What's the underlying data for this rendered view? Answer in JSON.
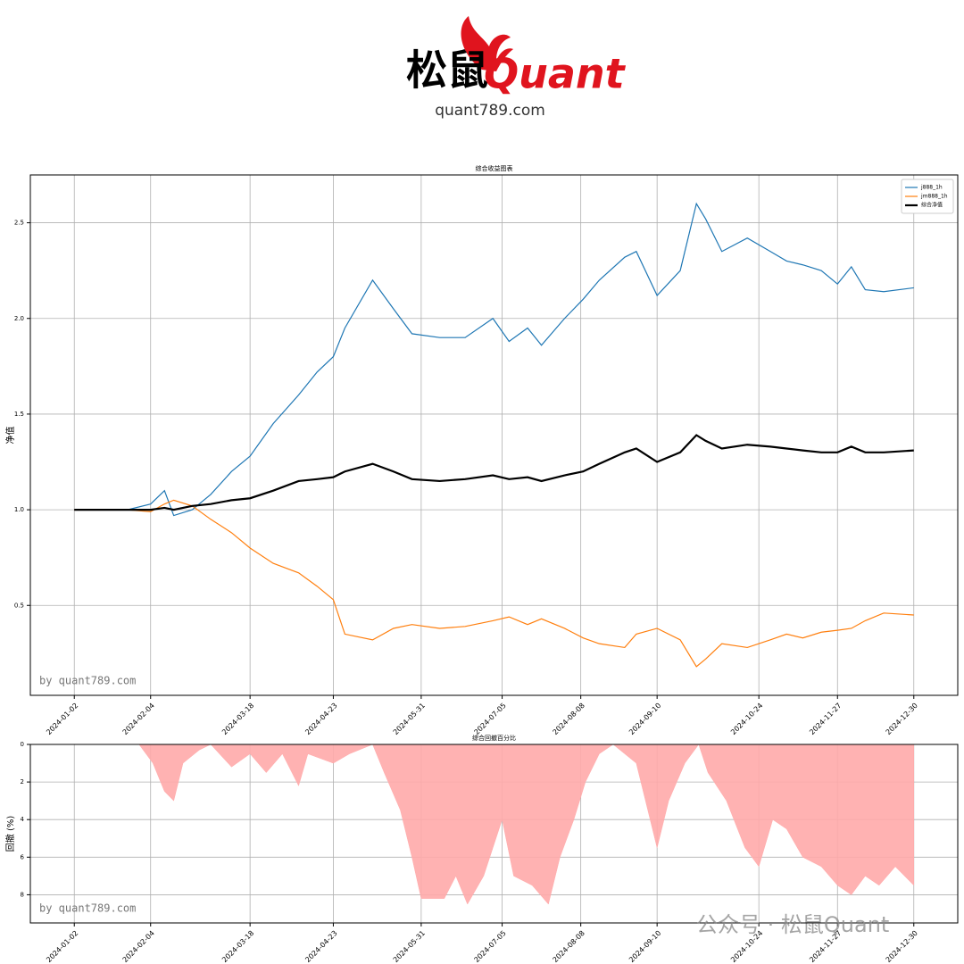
{
  "header": {
    "logo_cn": "松鼠",
    "logo_en": "Quant",
    "url": "quant789.com"
  },
  "watermark": "公众号 · 松鼠Quant",
  "chart_data": [
    {
      "type": "line",
      "title": "综合收益图表",
      "y_label": "净值",
      "annotation": "by quant789.com",
      "legend": "upper right",
      "grid": true,
      "xlim": [
        "2023-12-14",
        "2025-01-18"
      ],
      "ylim": [
        0.03,
        2.75
      ],
      "xticks": [
        "2024-01-02",
        "2024-02-04",
        "2024-03-18",
        "2024-04-23",
        "2024-05-31",
        "2024-07-05",
        "2024-08-08",
        "2024-09-10",
        "2024-10-24",
        "2024-11-27",
        "2024-12-30"
      ],
      "yticks": [
        0.5,
        {
          "value": 1,
          "label": "1.0"
        },
        1.5,
        {
          "value": 2,
          "label": "2.0"
        },
        2.5
      ],
      "x": [
        "2024-01-02",
        "2024-01-25",
        "2024-02-04",
        "2024-02-10",
        "2024-02-14",
        "2024-02-22",
        "2024-03-01",
        "2024-03-10",
        "2024-03-18",
        "2024-03-28",
        "2024-04-08",
        "2024-04-16",
        "2024-04-23",
        "2024-04-28",
        "2024-05-10",
        "2024-05-19",
        "2024-05-27",
        "2024-06-08",
        "2024-06-19",
        "2024-07-01",
        "2024-07-08",
        "2024-07-16",
        "2024-07-22",
        "2024-08-01",
        "2024-08-09",
        "2024-08-16",
        "2024-08-27",
        "2024-09-01",
        "2024-09-10",
        "2024-09-20",
        "2024-09-27",
        "2024-10-01",
        "2024-10-08",
        "2024-10-19",
        "2024-10-29",
        "2024-11-05",
        "2024-11-12",
        "2024-11-20",
        "2024-11-27",
        "2024-12-03",
        "2024-12-09",
        "2024-12-17",
        "2024-12-30"
      ],
      "series": [
        {
          "name": "j888_1h",
          "color": "#1f77b4",
          "width": 1.2,
          "values": [
            1.0,
            1.0,
            1.03,
            1.1,
            0.97,
            1.0,
            1.08,
            1.2,
            1.28,
            1.45,
            1.6,
            1.72,
            1.8,
            1.95,
            2.2,
            2.05,
            1.92,
            1.9,
            1.9,
            2.0,
            1.88,
            1.95,
            1.86,
            2.0,
            2.1,
            2.2,
            2.32,
            2.35,
            2.12,
            2.25,
            2.6,
            2.52,
            2.35,
            2.42,
            2.35,
            2.3,
            2.28,
            2.25,
            2.18,
            2.27,
            2.15,
            2.14,
            2.16
          ]
        },
        {
          "name": "jm888_1h",
          "color": "#ff7f0e",
          "width": 1.2,
          "values": [
            1.0,
            1.0,
            0.99,
            1.03,
            1.05,
            1.02,
            0.95,
            0.88,
            0.8,
            0.72,
            0.67,
            0.6,
            0.53,
            0.35,
            0.32,
            0.38,
            0.4,
            0.38,
            0.39,
            0.42,
            0.44,
            0.4,
            0.43,
            0.38,
            0.33,
            0.3,
            0.28,
            0.35,
            0.38,
            0.32,
            0.18,
            0.22,
            0.3,
            0.28,
            0.32,
            0.35,
            0.33,
            0.36,
            0.37,
            0.38,
            0.42,
            0.46,
            0.45
          ]
        },
        {
          "name": "综合净值",
          "color": "#000000",
          "width": 2.2,
          "values": [
            1.0,
            1.0,
            1.0,
            1.01,
            1.0,
            1.02,
            1.03,
            1.05,
            1.06,
            1.1,
            1.15,
            1.16,
            1.17,
            1.2,
            1.24,
            1.2,
            1.16,
            1.15,
            1.16,
            1.18,
            1.16,
            1.17,
            1.15,
            1.18,
            1.2,
            1.24,
            1.3,
            1.32,
            1.25,
            1.3,
            1.39,
            1.36,
            1.32,
            1.34,
            1.33,
            1.32,
            1.31,
            1.3,
            1.3,
            1.33,
            1.3,
            1.3,
            1.31
          ]
        }
      ]
    },
    {
      "type": "area",
      "title": "综合回撤百分比",
      "y_label": "回撤 (%)",
      "annotation": "by quant789.com",
      "grid": true,
      "invert_y": true,
      "xlim": [
        "2023-12-14",
        "2025-01-18"
      ],
      "ylim": [
        0,
        9.5
      ],
      "xticks": [
        "2024-01-02",
        "2024-02-04",
        "2024-03-18",
        "2024-04-23",
        "2024-05-31",
        "2024-07-05",
        "2024-08-08",
        "2024-09-10",
        "2024-10-24",
        "2024-11-27",
        "2024-12-30"
      ],
      "yticks": [
        0,
        2,
        4,
        6,
        8
      ],
      "x": [
        "2024-01-02",
        "2024-01-30",
        "2024-02-05",
        "2024-02-10",
        "2024-02-14",
        "2024-02-18",
        "2024-02-25",
        "2024-03-01",
        "2024-03-10",
        "2024-03-18",
        "2024-03-25",
        "2024-04-01",
        "2024-04-08",
        "2024-04-12",
        "2024-04-23",
        "2024-04-30",
        "2024-05-10",
        "2024-05-15",
        "2024-05-22",
        "2024-05-27",
        "2024-05-31",
        "2024-06-10",
        "2024-06-15",
        "2024-06-20",
        "2024-06-27",
        "2024-07-01",
        "2024-07-05",
        "2024-07-10",
        "2024-07-18",
        "2024-07-25",
        "2024-07-30",
        "2024-08-05",
        "2024-08-10",
        "2024-08-16",
        "2024-08-22",
        "2024-08-27",
        "2024-09-01",
        "2024-09-05",
        "2024-09-10",
        "2024-09-15",
        "2024-09-22",
        "2024-09-28",
        "2024-10-02",
        "2024-10-10",
        "2024-10-18",
        "2024-10-24",
        "2024-10-30",
        "2024-11-05",
        "2024-11-12",
        "2024-11-20",
        "2024-11-27",
        "2024-12-03",
        "2024-12-09",
        "2024-12-15",
        "2024-12-22",
        "2024-12-30"
      ],
      "series": [
        {
          "color": "#ffaaaa",
          "values": [
            0,
            0,
            1,
            2.5,
            3,
            1,
            0.3,
            0,
            1.2,
            0.5,
            1.5,
            0.5,
            2.2,
            0.5,
            1,
            0.5,
            0,
            1.5,
            3.5,
            6,
            8.2,
            8.2,
            7,
            8.5,
            7,
            5.5,
            4,
            7,
            7.5,
            8.5,
            6,
            4,
            2,
            0.5,
            0,
            0.5,
            1,
            3,
            5.5,
            3,
            1,
            0,
            1.5,
            3,
            5.5,
            6.5,
            4,
            4.5,
            6,
            6.5,
            7.5,
            8,
            7,
            7.5,
            6.5,
            7.5
          ]
        }
      ]
    }
  ]
}
